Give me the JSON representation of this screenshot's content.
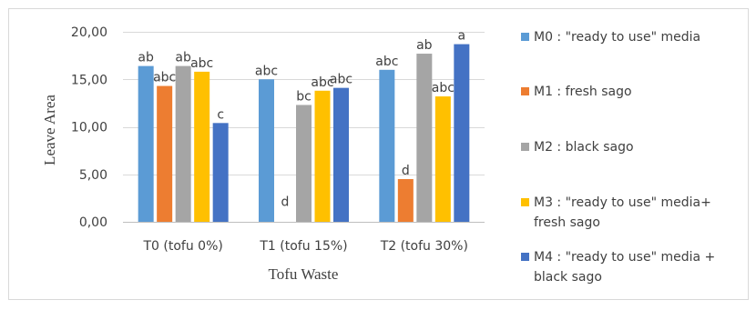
{
  "chart_data": {
    "type": "bar",
    "xlabel": "Tofu Waste",
    "ylabel": "Leave Area",
    "ylim": [
      0,
      20
    ],
    "y_ticks": [
      "0,00",
      "5,00",
      "10,00",
      "15,00",
      "20,00"
    ],
    "y_tick_values": [
      0,
      5,
      10,
      15,
      20
    ],
    "grid": true,
    "legend_position": "right",
    "categories": [
      "T0 (tofu 0%)",
      "T1 (tofu 15%)",
      "T2 (tofu 30%)"
    ],
    "series": [
      {
        "name": "M0 : \"ready to use\" media",
        "color": "#5B9BD5",
        "values": [
          16.4,
          15.0,
          16.0
        ],
        "labels": [
          "ab",
          "abc",
          "abc"
        ]
      },
      {
        "name": "M1 : fresh sago",
        "color": "#ED7D31",
        "values": [
          14.3,
          0,
          4.5
        ],
        "labels": [
          "abc",
          "d",
          "d"
        ]
      },
      {
        "name": "M2 : black sago",
        "color": "#A5A5A5",
        "values": [
          16.4,
          12.3,
          17.7
        ],
        "labels": [
          "ab",
          "bc",
          "ab"
        ]
      },
      {
        "name": "M3 : \"ready to use\" media+ fresh sago",
        "color": "#FFC000",
        "values": [
          15.8,
          13.8,
          13.2
        ],
        "labels": [
          "abc",
          "abc",
          "abc"
        ]
      },
      {
        "name": "M4 : \"ready to use\" media + black sago",
        "color": "#4472C4",
        "values": [
          10.4,
          14.1,
          18.7
        ],
        "labels": [
          "c",
          "abc",
          "a"
        ]
      }
    ]
  }
}
